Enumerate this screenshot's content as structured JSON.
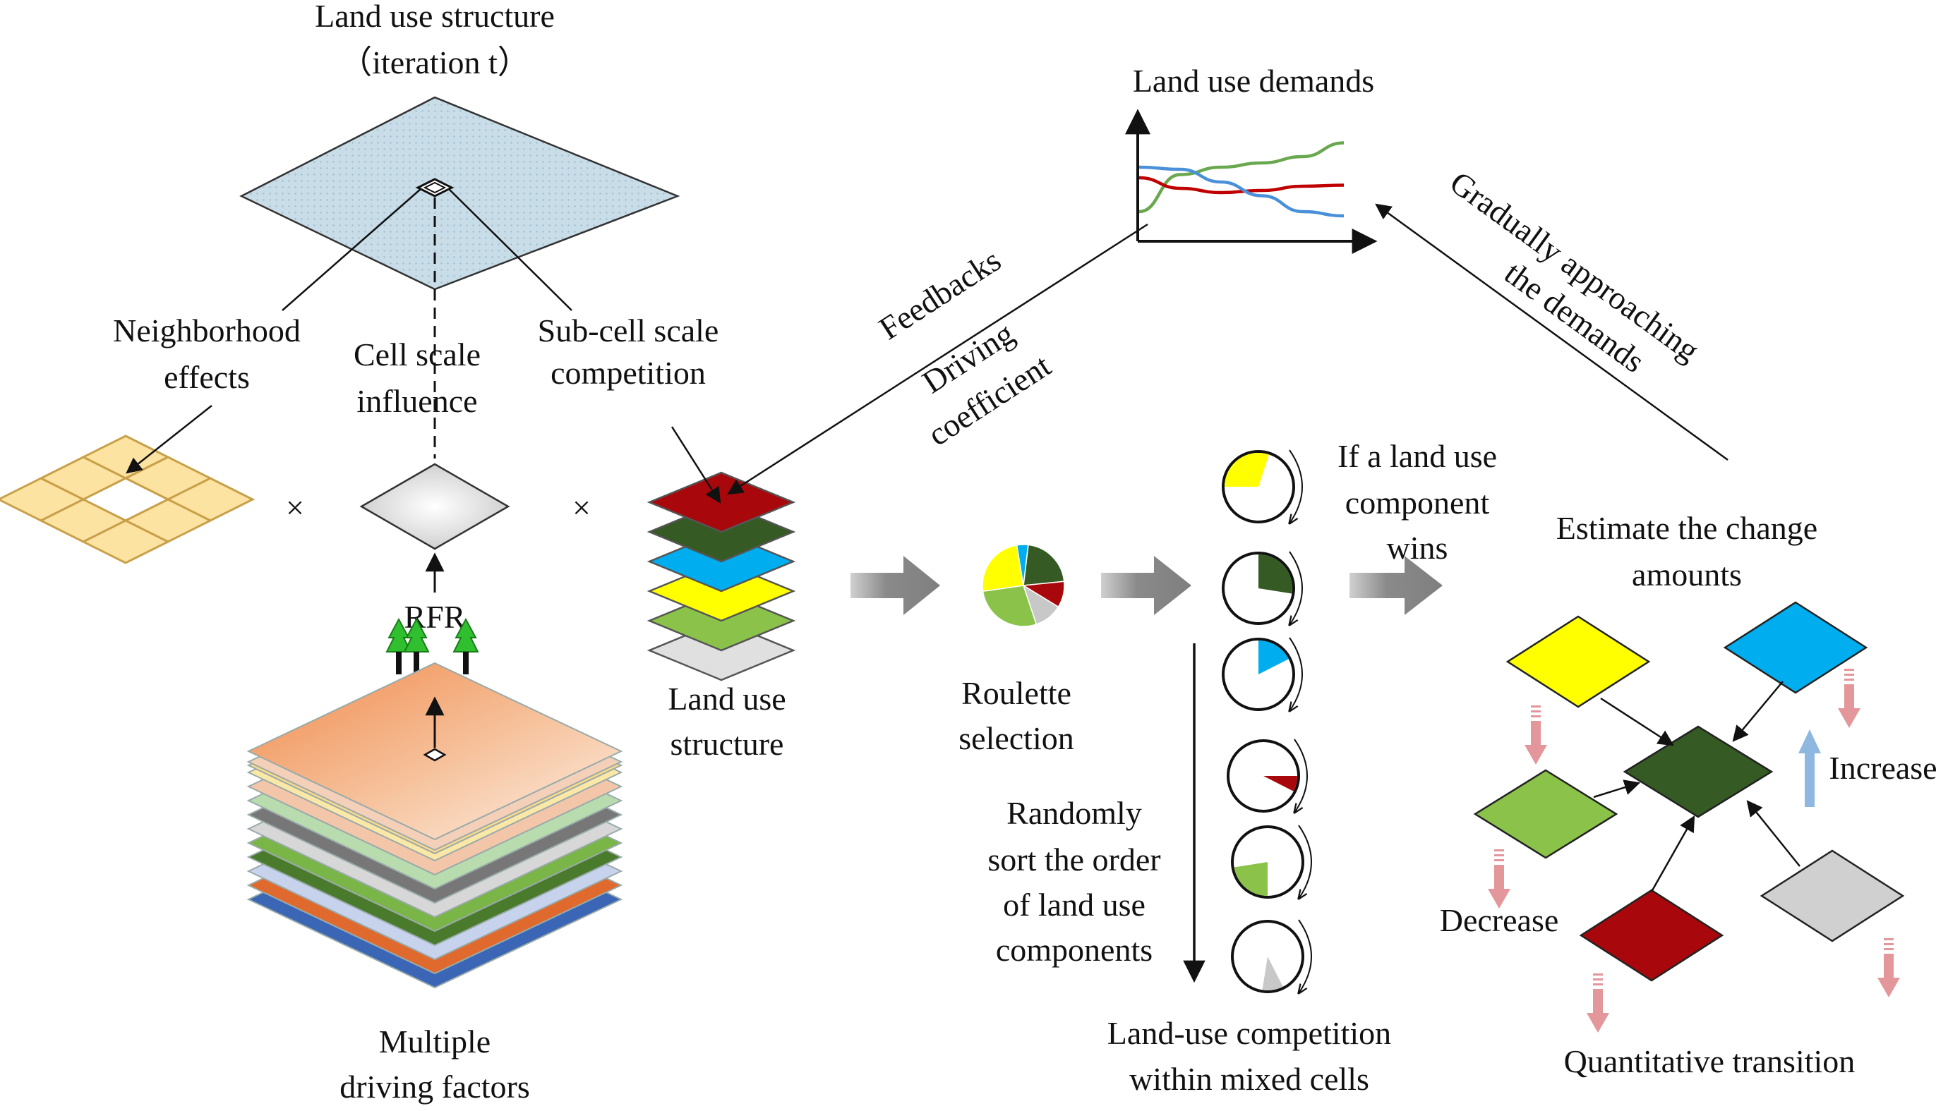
{
  "colors": {
    "dark_red": "#a8080c",
    "dark_green": "#355a23",
    "cyan": "#00aeef",
    "yellow": "#ffff00",
    "light_green": "#8bc34a",
    "gray": "#c8c8c8",
    "grid_blue": "#c9dde8",
    "neighborhood": "#fde3a1",
    "arrow_gray": "#7f7f7f",
    "decrease_arrow": "#e3979b",
    "increase_arrow": "#8fb8e0"
  },
  "labels": {
    "top_structure": "Land use structure",
    "iteration": "（iteration t）",
    "neighborhood": [
      "Neighborhood",
      "effects"
    ],
    "cell_scale": [
      "Cell scale",
      "influence"
    ],
    "subcell": [
      "Sub-cell scale",
      "competition"
    ],
    "times_1": "×",
    "times_2": "×",
    "rfr": "RFR",
    "dots": "…",
    "multiple": [
      "Multiple",
      "driving factors"
    ],
    "land_use_structure": [
      "Land use",
      "structure"
    ],
    "demands_title": "Land use demands",
    "feedbacks": "Feedbacks",
    "driving": [
      "Driving",
      "coefficient"
    ],
    "approaching": [
      "Gradually approaching",
      "the demands"
    ],
    "roulette": [
      "Roulette",
      "selection"
    ],
    "if_wins": [
      "If a land use",
      "component",
      "wins"
    ],
    "randomly": [
      "Randomly",
      "sort the order",
      "of land use",
      "components"
    ],
    "competition": [
      "Land-use competition",
      "within mixed cells"
    ],
    "estimate": [
      "Estimate the change",
      "amounts"
    ],
    "increase": "Increase",
    "decrease": "Decrease",
    "quantitative": "Quantitative transition"
  },
  "chart_data": {
    "type": "line",
    "title": "Land use demands",
    "xlabel": "",
    "ylabel": "",
    "note": "Schematic curves with no printed axis values",
    "series": [
      {
        "color": "#6aa84f",
        "values": [
          0.2,
          0.55,
          0.62,
          0.66,
          0.72,
          0.85
        ]
      },
      {
        "color": "#c00000",
        "values": [
          0.52,
          0.42,
          0.38,
          0.4,
          0.44,
          0.45
        ]
      },
      {
        "color": "#4a90d9",
        "values": [
          0.62,
          0.6,
          0.48,
          0.35,
          0.2,
          0.16
        ]
      }
    ]
  }
}
